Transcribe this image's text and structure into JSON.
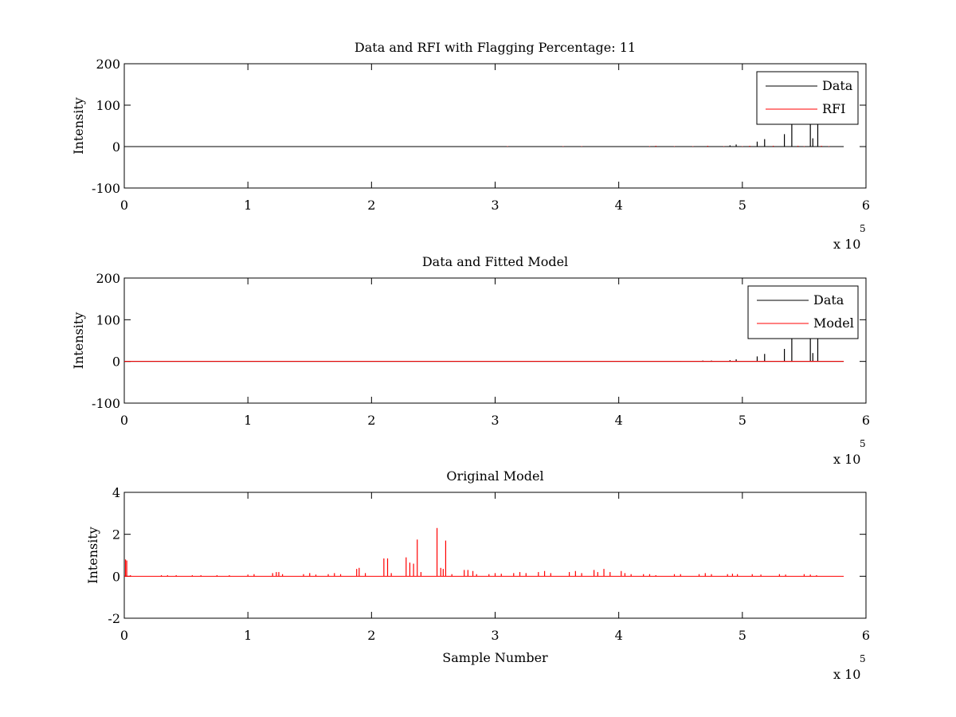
{
  "chart_data": [
    {
      "type": "line",
      "title": "Data and RFI with Flagging Percentage: 11",
      "xlabel": "",
      "ylabel": "Intensity",
      "xlim": [
        0,
        6
      ],
      "ylim": [
        -100,
        200
      ],
      "x_ticks": [
        "0",
        "1",
        "2",
        "3",
        "4",
        "5",
        "6"
      ],
      "y_ticks": [
        "-100",
        "0",
        "100",
        "200"
      ],
      "x_multiplier": {
        "base": "x 10",
        "exponent": "5"
      },
      "legend": {
        "placement": "top-right",
        "entries": [
          {
            "label": "Data",
            "color": "#000000"
          },
          {
            "label": "RFI",
            "color": "#ff0000"
          }
        ]
      },
      "series": [
        {
          "name": "Data",
          "color": "#000000",
          "baseline": 0,
          "x_end": 5.82,
          "spikes": [
            [
              4.9,
              3
            ],
            [
              4.95,
              5
            ],
            [
              5.12,
              12
            ],
            [
              5.18,
              18
            ],
            [
              5.34,
              30
            ],
            [
              5.4,
              58
            ],
            [
              5.55,
              58
            ],
            [
              5.57,
              20
            ],
            [
              5.61,
              58
            ]
          ]
        },
        {
          "name": "RFI",
          "color": "#ff0000",
          "baseline": 0,
          "spikes": [
            [
              3.1,
              1
            ],
            [
              3.55,
              1
            ],
            [
              3.7,
              1
            ],
            [
              4.25,
              1
            ],
            [
              4.3,
              2
            ],
            [
              4.45,
              1
            ],
            [
              4.6,
              1
            ],
            [
              4.72,
              2
            ],
            [
              4.85,
              1
            ],
            [
              5.0,
              1
            ],
            [
              5.06,
              2
            ],
            [
              5.25,
              2
            ],
            [
              5.45,
              2
            ],
            [
              5.5,
              1
            ],
            [
              5.64,
              2
            ],
            [
              5.7,
              1
            ]
          ]
        }
      ]
    },
    {
      "type": "line",
      "title": "Data and Fitted Model",
      "xlabel": "",
      "ylabel": "Intensity",
      "xlim": [
        0,
        6
      ],
      "ylim": [
        -100,
        200
      ],
      "x_ticks": [
        "0",
        "1",
        "2",
        "3",
        "4",
        "5",
        "6"
      ],
      "y_ticks": [
        "-100",
        "0",
        "100",
        "200"
      ],
      "x_multiplier": {
        "base": "x 10",
        "exponent": "5"
      },
      "legend": {
        "placement": "top-right",
        "entries": [
          {
            "label": "Data",
            "color": "#000000"
          },
          {
            "label": "Model",
            "color": "#ff0000"
          }
        ]
      },
      "series": [
        {
          "name": "Data",
          "color": "#000000",
          "baseline": 0,
          "x_end": 5.82,
          "spikes": [
            [
              4.5,
              1
            ],
            [
              4.68,
              2
            ],
            [
              4.75,
              2
            ],
            [
              4.9,
              3
            ],
            [
              4.95,
              5
            ],
            [
              5.12,
              12
            ],
            [
              5.18,
              18
            ],
            [
              5.34,
              30
            ],
            [
              5.4,
              58
            ],
            [
              5.55,
              58
            ],
            [
              5.57,
              20
            ],
            [
              5.61,
              58
            ]
          ]
        },
        {
          "name": "Model",
          "color": "#ff0000",
          "baseline": 0,
          "x_end": 5.82,
          "spikes": []
        }
      ]
    },
    {
      "type": "line",
      "title": "Original Model",
      "xlabel": "Sample Number",
      "ylabel": "Intensity",
      "xlim": [
        0,
        6
      ],
      "ylim": [
        -2,
        4
      ],
      "x_ticks": [
        "0",
        "1",
        "2",
        "3",
        "4",
        "5",
        "6"
      ],
      "y_ticks": [
        "-2",
        "0",
        "2",
        "4"
      ],
      "x_multiplier": {
        "base": "x 10",
        "exponent": "5"
      },
      "legend": null,
      "series": [
        {
          "name": "",
          "color": "#ff0000",
          "baseline": 0,
          "x_end": 5.82,
          "spikes": [
            [
              0.01,
              0.8
            ],
            [
              0.02,
              0.75
            ],
            [
              0.05,
              0.05
            ],
            [
              0.3,
              0.05
            ],
            [
              0.35,
              0.05
            ],
            [
              0.42,
              0.05
            ],
            [
              0.55,
              0.05
            ],
            [
              0.62,
              0.05
            ],
            [
              0.75,
              0.05
            ],
            [
              0.85,
              0.05
            ],
            [
              1.0,
              0.08
            ],
            [
              1.05,
              0.1
            ],
            [
              1.2,
              0.15
            ],
            [
              1.23,
              0.2
            ],
            [
              1.25,
              0.2
            ],
            [
              1.28,
              0.1
            ],
            [
              1.45,
              0.1
            ],
            [
              1.5,
              0.15
            ],
            [
              1.55,
              0.08
            ],
            [
              1.65,
              0.1
            ],
            [
              1.7,
              0.15
            ],
            [
              1.75,
              0.1
            ],
            [
              1.88,
              0.35
            ],
            [
              1.9,
              0.4
            ],
            [
              1.95,
              0.15
            ],
            [
              2.1,
              0.85
            ],
            [
              2.13,
              0.85
            ],
            [
              2.16,
              0.15
            ],
            [
              2.28,
              0.9
            ],
            [
              2.31,
              0.65
            ],
            [
              2.34,
              0.6
            ],
            [
              2.37,
              1.75
            ],
            [
              2.4,
              0.2
            ],
            [
              2.53,
              2.3
            ],
            [
              2.56,
              0.4
            ],
            [
              2.58,
              0.35
            ],
            [
              2.6,
              1.7
            ],
            [
              2.65,
              0.1
            ],
            [
              2.75,
              0.3
            ],
            [
              2.78,
              0.3
            ],
            [
              2.82,
              0.25
            ],
            [
              2.85,
              0.1
            ],
            [
              2.95,
              0.1
            ],
            [
              3.0,
              0.15
            ],
            [
              3.05,
              0.12
            ],
            [
              3.15,
              0.15
            ],
            [
              3.2,
              0.2
            ],
            [
              3.25,
              0.15
            ],
            [
              3.35,
              0.2
            ],
            [
              3.4,
              0.25
            ],
            [
              3.45,
              0.15
            ],
            [
              3.6,
              0.2
            ],
            [
              3.65,
              0.25
            ],
            [
              3.7,
              0.15
            ],
            [
              3.8,
              0.3
            ],
            [
              3.83,
              0.2
            ],
            [
              3.88,
              0.35
            ],
            [
              3.93,
              0.2
            ],
            [
              4.02,
              0.25
            ],
            [
              4.05,
              0.15
            ],
            [
              4.1,
              0.1
            ],
            [
              4.2,
              0.1
            ],
            [
              4.25,
              0.1
            ],
            [
              4.3,
              0.05
            ],
            [
              4.45,
              0.1
            ],
            [
              4.5,
              0.1
            ],
            [
              4.65,
              0.1
            ],
            [
              4.7,
              0.15
            ],
            [
              4.75,
              0.1
            ],
            [
              4.88,
              0.1
            ],
            [
              4.92,
              0.12
            ],
            [
              4.96,
              0.1
            ],
            [
              5.08,
              0.1
            ],
            [
              5.15,
              0.08
            ],
            [
              5.3,
              0.1
            ],
            [
              5.35,
              0.08
            ],
            [
              5.5,
              0.1
            ],
            [
              5.55,
              0.08
            ],
            [
              5.6,
              0.05
            ]
          ]
        }
      ]
    }
  ]
}
